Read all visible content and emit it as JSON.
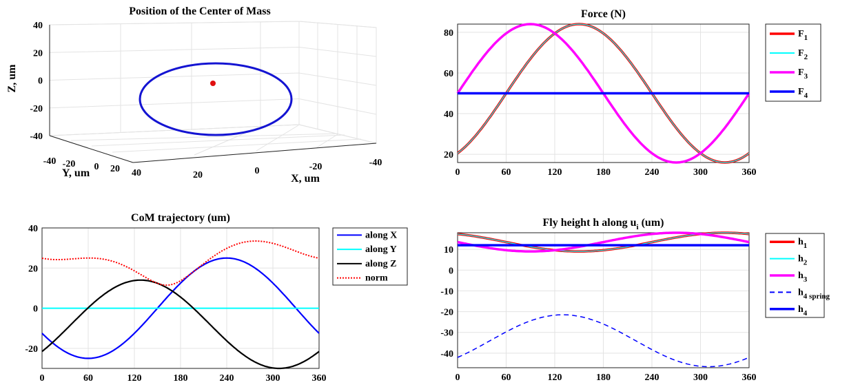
{
  "chart_data": [
    {
      "type": "line3d",
      "title": "Position of the Center of Mass",
      "xlabel": "X, um",
      "ylabel": "Y, um",
      "zlabel": "Z, um",
      "xticks": [
        "20",
        "0",
        "-20",
        "-40"
      ],
      "yticks": [
        "-40",
        "-20",
        "0",
        "20",
        "40"
      ],
      "zticks": [
        40,
        20,
        0,
        -20,
        -40
      ],
      "xlim": [
        -40,
        40
      ],
      "ylim": [
        -40,
        40
      ],
      "zlim": [
        -40,
        40
      ],
      "grid": true,
      "series": [
        {
          "shape": "ellipse",
          "color": "#1414d2"
        },
        {
          "shape": "point",
          "color": "#e01010"
        }
      ]
    },
    {
      "type": "line",
      "title": "Force (N)",
      "xlim": [
        0,
        360
      ],
      "ylim": [
        16,
        84
      ],
      "xticks": [
        0,
        60,
        120,
        180,
        240,
        300,
        360
      ],
      "yticks": [
        20,
        40,
        60,
        80
      ],
      "grid": true,
      "legend": "outside-right",
      "series": [
        {
          "label": "F",
          "sub": "1",
          "color": "#ff0000",
          "fn": "offset",
          "a": 50,
          "b": 34,
          "phase": 150
        },
        {
          "label": "F",
          "sub": "2",
          "color": "#00ffff",
          "fn": "offset",
          "a": 50,
          "b": 34,
          "phase": 150
        },
        {
          "label": "F",
          "sub": "3",
          "color": "#ff00ff",
          "fn": "offset",
          "a": 50,
          "b": 34,
          "phase": 90
        },
        {
          "label": "F",
          "sub": "4",
          "color": "#0000ff",
          "fn": "const",
          "a": 50
        }
      ]
    },
    {
      "type": "line",
      "title": "CoM trajectory (um)",
      "xlim": [
        0,
        360
      ],
      "ylim": [
        -30,
        40
      ],
      "xticks": [
        0,
        60,
        120,
        180,
        240,
        300,
        360
      ],
      "yticks": [
        40,
        20,
        0,
        -20
      ],
      "grid": true,
      "legend": "outside-right",
      "series": [
        {
          "label": "along X",
          "color": "#0000ff",
          "fn": "sin",
          "a": 0,
          "b": 25,
          "phase": 240
        },
        {
          "label": "along Y",
          "color": "#00ffff",
          "fn": "const",
          "a": 0
        },
        {
          "label": "along Z",
          "color": "#000000",
          "fn": "sin",
          "a": -8,
          "b": 22,
          "phase": 128
        },
        {
          "label": "norm",
          "color": "#ff0000",
          "fn": "norm",
          "dashed": true
        }
      ]
    },
    {
      "type": "line",
      "title": "Fly height h along u",
      "title_sub": "i",
      "title_suffix": " (um)",
      "xlim": [
        0,
        360
      ],
      "ylim": [
        -47,
        18
      ],
      "xticks": [
        0,
        60,
        120,
        180,
        240,
        300,
        360
      ],
      "yticks": [
        10,
        0,
        -10,
        -20,
        -30,
        -40
      ],
      "grid": true,
      "legend": "outside-right",
      "series": [
        {
          "label": "h",
          "sub": "1",
          "color": "#ff0000",
          "fn": "sin",
          "a": 13.5,
          "b": 4.5,
          "phase": 330
        },
        {
          "label": "h",
          "sub": "2",
          "color": "#00ffff",
          "fn": "sin",
          "a": 13.5,
          "b": 4.5,
          "phase": 330
        },
        {
          "label": "h",
          "sub": "3",
          "color": "#ff00ff",
          "fn": "sin",
          "a": 13.5,
          "b": 4.5,
          "phase": 270
        },
        {
          "label": "h",
          "sub": "4 spring",
          "color": "#0000ff",
          "fn": "sin",
          "a": -34,
          "b": 12.5,
          "phase": 130,
          "dashed": true
        },
        {
          "label": "h",
          "sub": "4",
          "color": "#0000ff",
          "fn": "const",
          "a": 12
        }
      ]
    }
  ]
}
